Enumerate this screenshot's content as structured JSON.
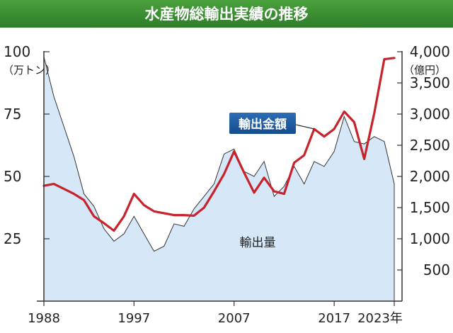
{
  "chart_data": {
    "type": "area+line",
    "title": "水産物総輸出実績の推移",
    "x_ticks": [
      "1988",
      "1997",
      "2007",
      "2017",
      "2023年"
    ],
    "grid": false,
    "left_axis": {
      "unit_label": "（万トン）",
      "range": [
        0,
        100
      ],
      "ticks": [
        "25",
        "50",
        "75",
        "100"
      ]
    },
    "right_axis": {
      "unit_label": "（億円）",
      "range": [
        0,
        4000
      ],
      "ticks": [
        "500",
        "1,000",
        "1,500",
        "2,000",
        "2,500",
        "3,000",
        "3,500",
        "4,000"
      ]
    },
    "series": [
      {
        "name": "輸出量",
        "type": "area",
        "axis": "left",
        "unit": "万トン",
        "color": "#d6e8f8",
        "edge_color": "#333333",
        "points": [
          [
            1988,
            98
          ],
          [
            1989,
            82
          ],
          [
            1990,
            70
          ],
          [
            1991,
            58
          ],
          [
            1992,
            43
          ],
          [
            1993,
            38
          ],
          [
            1994,
            29
          ],
          [
            1995,
            24
          ],
          [
            1996,
            27
          ],
          [
            1997,
            34
          ],
          [
            1998,
            27
          ],
          [
            1999,
            20
          ],
          [
            2000,
            22
          ],
          [
            2001,
            31
          ],
          [
            2002,
            30
          ],
          [
            2003,
            37
          ],
          [
            2004,
            42
          ],
          [
            2005,
            47
          ],
          [
            2006,
            59
          ],
          [
            2007,
            61
          ],
          [
            2008,
            52
          ],
          [
            2009,
            50
          ],
          [
            2010,
            56
          ],
          [
            2011,
            42
          ],
          [
            2012,
            46
          ],
          [
            2013,
            54
          ],
          [
            2014,
            47
          ],
          [
            2015,
            56
          ],
          [
            2016,
            54
          ],
          [
            2017,
            60
          ],
          [
            2018,
            74
          ],
          [
            2019,
            64
          ],
          [
            2020,
            63
          ],
          [
            2021,
            66
          ],
          [
            2022,
            64
          ],
          [
            2023,
            47
          ]
        ]
      },
      {
        "name": "輸出金額",
        "type": "line",
        "axis": "right",
        "unit": "億円",
        "color": "#c8232c",
        "points": [
          [
            1988,
            1850
          ],
          [
            1989,
            1880
          ],
          [
            1990,
            1800
          ],
          [
            1991,
            1720
          ],
          [
            1992,
            1620
          ],
          [
            1993,
            1360
          ],
          [
            1994,
            1250
          ],
          [
            1995,
            1130
          ],
          [
            1996,
            1360
          ],
          [
            1997,
            1720
          ],
          [
            1998,
            1540
          ],
          [
            1999,
            1440
          ],
          [
            2000,
            1410
          ],
          [
            2001,
            1380
          ],
          [
            2002,
            1380
          ],
          [
            2003,
            1370
          ],
          [
            2004,
            1500
          ],
          [
            2005,
            1760
          ],
          [
            2006,
            2040
          ],
          [
            2007,
            2400
          ],
          [
            2008,
            2060
          ],
          [
            2009,
            1740
          ],
          [
            2010,
            1980
          ],
          [
            2011,
            1760
          ],
          [
            2012,
            1720
          ],
          [
            2013,
            2220
          ],
          [
            2014,
            2340
          ],
          [
            2015,
            2760
          ],
          [
            2016,
            2640
          ],
          [
            2017,
            2760
          ],
          [
            2018,
            3040
          ],
          [
            2019,
            2870
          ],
          [
            2020,
            2280
          ],
          [
            2021,
            3010
          ],
          [
            2022,
            3880
          ],
          [
            2023,
            3900
          ]
        ]
      }
    ],
    "annotations": {
      "amount_callout": "輸出金額",
      "volume_label": "輸出量"
    }
  }
}
